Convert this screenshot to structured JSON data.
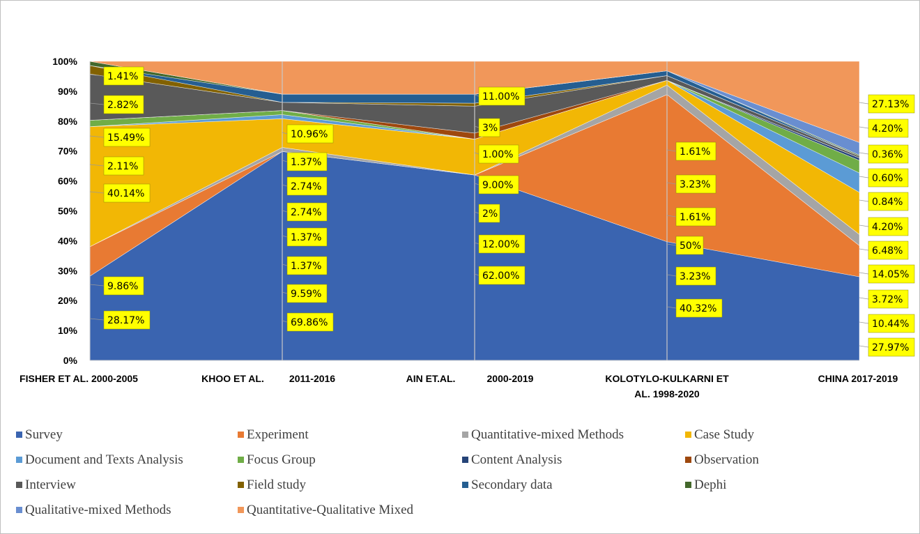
{
  "chart_data": {
    "type": "area",
    "stacked": "percent",
    "title": "",
    "xlabel": "",
    "ylabel": "",
    "ylim": [
      0,
      100
    ],
    "yticks": [
      "0%",
      "10%",
      "20%",
      "30%",
      "40%",
      "50%",
      "60%",
      "70%",
      "80%",
      "90%",
      "100%"
    ],
    "categories": [
      "FISHER ET AL. 2000-2005",
      "KHOO ET AL.   2011-2016",
      "AIN ET.AL.   2000-2019",
      "KOLOTYLO-KULKARNI ET AL.  1998-2020",
      "CHINA 2017-2019"
    ],
    "legend_position": "bottom",
    "series": [
      {
        "name": "Survey",
        "color": "#3a64b0",
        "values": [
          28.17,
          69.86,
          62.0,
          40.32,
          27.97
        ]
      },
      {
        "name": "Experiment",
        "color": "#e87a33",
        "values": [
          9.86,
          0,
          0,
          50,
          10.44
        ]
      },
      {
        "name": "Quantitative-mixed Methods",
        "color": "#a5a5a5",
        "values": [
          0,
          1.37,
          0,
          3.23,
          3.72
        ]
      },
      {
        "name": "Case Study",
        "color": "#f2b705",
        "values": [
          40.14,
          9.59,
          12.0,
          1.61,
          14.05
        ]
      },
      {
        "name": "Document and Texts Analysis",
        "color": "#5b9bd5",
        "values": [
          0,
          1.37,
          0,
          0,
          6.48
        ]
      },
      {
        "name": "Focus Group",
        "color": "#70ad47",
        "values": [
          2.11,
          1.37,
          0,
          0,
          4.2
        ]
      },
      {
        "name": "Content Analysis",
        "color": "#264478",
        "values": [
          0,
          0,
          0,
          0,
          0.84
        ]
      },
      {
        "name": "Observation",
        "color": "#9e480e",
        "values": [
          0,
          0,
          2.0,
          0,
          0
        ]
      },
      {
        "name": "Interview",
        "color": "#595959",
        "values": [
          15.49,
          2.74,
          9.0,
          1.61,
          0.6
        ]
      },
      {
        "name": "Field study",
        "color": "#826100",
        "values": [
          2.82,
          0,
          1.0,
          0,
          0
        ]
      },
      {
        "name": "Secondary data",
        "color": "#255e91",
        "values": [
          0,
          2.74,
          3.0,
          1.61,
          0
        ]
      },
      {
        "name": "Dephi",
        "color": "#43682b",
        "values": [
          1.41,
          0,
          0,
          0,
          0.36
        ]
      },
      {
        "name": "Qualitative-mixed Methods",
        "color": "#698ed0",
        "values": [
          0,
          0,
          0,
          0,
          4.2
        ]
      },
      {
        "name": "Quantitative-Qualitative Mixed",
        "color": "#f1975a",
        "values": [
          0,
          10.96,
          11.0,
          3.23,
          27.13
        ]
      }
    ],
    "data_labels": [
      [
        "1.41%",
        "2.82%",
        "15.49%",
        "2.11%",
        "40.14%",
        "9.86%",
        "28.17%"
      ],
      [
        "10.96%",
        "1.37%",
        "2.74%",
        "2.74%",
        "1.37%",
        "1.37%",
        "9.59%",
        "69.86%"
      ],
      [
        "11.00%",
        "3%",
        "1.00%",
        "9.00%",
        "2%",
        "12.00%",
        "62.00%"
      ],
      [
        "1.61%",
        "3.23%",
        "1.61%",
        "50%",
        "3.23%",
        "40.32%"
      ],
      [
        "27.13%",
        "4.20%",
        "0.36%",
        "0.60%",
        "0.84%",
        "4.20%",
        "6.48%",
        "14.05%",
        "3.72%",
        "10.44%",
        "27.97%"
      ]
    ]
  }
}
